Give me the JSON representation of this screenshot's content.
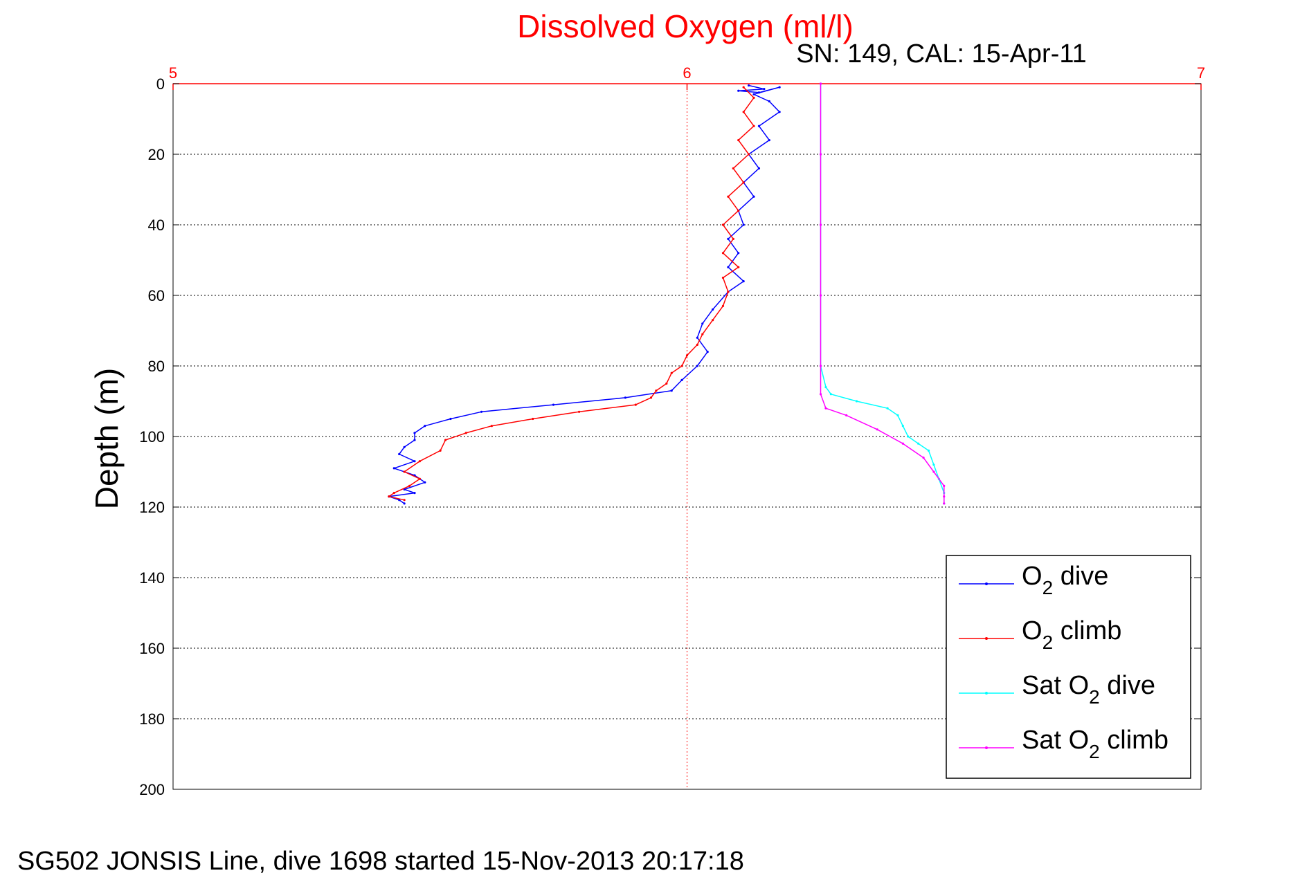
{
  "chart_data": {
    "type": "line",
    "title": "Dissolved Oxygen (ml/l)",
    "subtitle": "SN: 149, CAL: 15-Apr-11",
    "ylabel": "Depth (m)",
    "xlim": [
      5,
      7
    ],
    "ylim": [
      0,
      200
    ],
    "y_reversed": true,
    "x_axis_position": "top",
    "x_ticks": [
      "5",
      "6",
      "7"
    ],
    "y_ticks": [
      "0",
      "20",
      "40",
      "60",
      "80",
      "100",
      "120",
      "140",
      "160",
      "180",
      "200"
    ],
    "grid": true,
    "legend_position": "lower-right",
    "series": [
      {
        "name": "O2 dive",
        "legend_main": "O",
        "legend_sub": "2",
        "legend_rest": " dive",
        "color": "#0000ff",
        "points": [
          [
            6.12,
            0.5
          ],
          [
            6.15,
            1.5
          ],
          [
            6.1,
            2.0
          ],
          [
            6.14,
            2.5
          ],
          [
            6.18,
            1.0
          ],
          [
            6.13,
            3.0
          ],
          [
            6.16,
            5.0
          ],
          [
            6.18,
            8.0
          ],
          [
            6.14,
            12.0
          ],
          [
            6.16,
            16.0
          ],
          [
            6.12,
            20.0
          ],
          [
            6.14,
            24.0
          ],
          [
            6.11,
            28.0
          ],
          [
            6.13,
            32.0
          ],
          [
            6.1,
            36.0
          ],
          [
            6.11,
            40.0
          ],
          [
            6.08,
            44.0
          ],
          [
            6.1,
            48.0
          ],
          [
            6.08,
            52.0
          ],
          [
            6.11,
            56.0
          ],
          [
            6.08,
            59.0
          ],
          [
            6.05,
            64.0
          ],
          [
            6.03,
            68.0
          ],
          [
            6.02,
            72.0
          ],
          [
            6.04,
            76.0
          ],
          [
            6.02,
            80.0
          ],
          [
            5.99,
            84.0
          ],
          [
            5.97,
            87.0
          ],
          [
            5.88,
            89.0
          ],
          [
            5.74,
            91.0
          ],
          [
            5.6,
            93.0
          ],
          [
            5.54,
            95.0
          ],
          [
            5.49,
            97.0
          ],
          [
            5.47,
            99.0
          ],
          [
            5.47,
            101.0
          ],
          [
            5.45,
            103.0
          ],
          [
            5.44,
            105.0
          ],
          [
            5.47,
            107.0
          ],
          [
            5.43,
            109.0
          ],
          [
            5.47,
            111.0
          ],
          [
            5.49,
            113.0
          ],
          [
            5.45,
            115.0
          ],
          [
            5.47,
            116.0
          ],
          [
            5.42,
            117.0
          ],
          [
            5.44,
            118.0
          ],
          [
            5.45,
            119.0
          ]
        ]
      },
      {
        "name": "O2 climb",
        "legend_main": "O",
        "legend_sub": "2",
        "legend_rest": " climb",
        "color": "#ff0000",
        "points": [
          [
            5.45,
            118.0
          ],
          [
            5.42,
            117.0
          ],
          [
            5.43,
            116.0
          ],
          [
            5.46,
            114.0
          ],
          [
            5.48,
            112.0
          ],
          [
            5.45,
            110.0
          ],
          [
            5.48,
            107.0
          ],
          [
            5.52,
            104.0
          ],
          [
            5.53,
            101.0
          ],
          [
            5.57,
            99.0
          ],
          [
            5.62,
            97.0
          ],
          [
            5.7,
            95.0
          ],
          [
            5.79,
            93.0
          ],
          [
            5.9,
            91.0
          ],
          [
            5.93,
            89.0
          ],
          [
            5.94,
            87.0
          ],
          [
            5.96,
            85.0
          ],
          [
            5.97,
            82.0
          ],
          [
            5.99,
            80.0
          ],
          [
            6.0,
            77.0
          ],
          [
            6.02,
            74.0
          ],
          [
            6.03,
            71.0
          ],
          [
            6.05,
            67.0
          ],
          [
            6.07,
            63.0
          ],
          [
            6.08,
            59.0
          ],
          [
            6.07,
            55.0
          ],
          [
            6.1,
            52.0
          ],
          [
            6.07,
            48.0
          ],
          [
            6.09,
            44.0
          ],
          [
            6.07,
            40.0
          ],
          [
            6.1,
            36.0
          ],
          [
            6.08,
            32.0
          ],
          [
            6.11,
            28.0
          ],
          [
            6.09,
            24.0
          ],
          [
            6.12,
            20.0
          ],
          [
            6.1,
            16.0
          ],
          [
            6.13,
            12.0
          ],
          [
            6.11,
            8.0
          ],
          [
            6.13,
            4.0
          ],
          [
            6.11,
            1.0
          ]
        ]
      },
      {
        "name": "Sat O2 dive",
        "legend_main": "Sat O",
        "legend_sub": "2",
        "legend_rest": " dive",
        "color": "#00ffff",
        "points": [
          [
            6.26,
            0.0
          ],
          [
            6.26,
            20.0
          ],
          [
            6.26,
            40.0
          ],
          [
            6.26,
            60.0
          ],
          [
            6.26,
            80.0
          ],
          [
            6.27,
            86.0
          ],
          [
            6.28,
            88.0
          ],
          [
            6.33,
            90.0
          ],
          [
            6.39,
            92.0
          ],
          [
            6.41,
            94.0
          ],
          [
            6.42,
            97.0
          ],
          [
            6.43,
            100.0
          ],
          [
            6.45,
            102.0
          ],
          [
            6.47,
            104.0
          ],
          [
            6.48,
            108.0
          ],
          [
            6.49,
            112.0
          ],
          [
            6.5,
            116.0
          ],
          [
            6.5,
            119.0
          ]
        ]
      },
      {
        "name": "Sat O2 climb",
        "legend_main": "Sat O",
        "legend_sub": "2",
        "legend_rest": " climb",
        "color": "#ff00ff",
        "points": [
          [
            6.26,
            0.0
          ],
          [
            6.26,
            20.0
          ],
          [
            6.26,
            40.0
          ],
          [
            6.26,
            60.0
          ],
          [
            6.26,
            80.0
          ],
          [
            6.26,
            88.0
          ],
          [
            6.27,
            92.0
          ],
          [
            6.31,
            94.0
          ],
          [
            6.37,
            98.0
          ],
          [
            6.42,
            102.0
          ],
          [
            6.46,
            106.0
          ],
          [
            6.48,
            110.0
          ],
          [
            6.5,
            114.0
          ],
          [
            6.5,
            117.0
          ],
          [
            6.5,
            119.0
          ]
        ]
      }
    ]
  },
  "caption": "SG502 JONSIS Line, dive 1698 started 15-Nov-2013 20:17:18"
}
